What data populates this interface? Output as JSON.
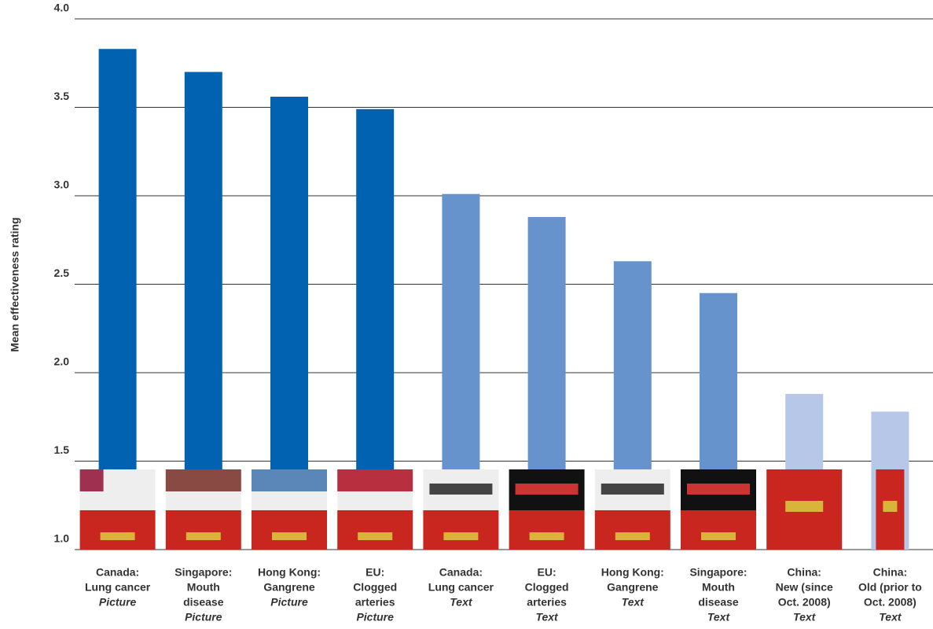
{
  "chart_data": {
    "type": "bar",
    "y_label": "Mean effectiveness rating",
    "categories": [
      [
        "Canada:",
        "Lung cancer"
      ],
      [
        "Singapore:",
        "Mouth",
        "disease"
      ],
      [
        "Hong Kong:",
        "Gangrene"
      ],
      [
        "EU:",
        "Clogged",
        "arteries"
      ],
      [
        "Canada:",
        "Lung cancer"
      ],
      [
        "EU:",
        "Clogged",
        "arteries"
      ],
      [
        "Hong Kong:",
        "Gangrene"
      ],
      [
        "Singapore:",
        "Mouth",
        "disease"
      ],
      [
        "China:",
        "New (since",
        "Oct. 2008)"
      ],
      [
        "China:",
        "Old (prior to",
        "Oct. 2008)"
      ]
    ],
    "warning_format": [
      "Picture",
      "Picture",
      "Picture",
      "Picture",
      "Text",
      "Text",
      "Text",
      "Text",
      "Text",
      "Text"
    ],
    "values": [
      3.83,
      3.7,
      3.56,
      3.49,
      3.01,
      2.88,
      2.63,
      2.45,
      1.88,
      1.78
    ],
    "colors": [
      "#0062b1",
      "#0062b1",
      "#0062b1",
      "#0062b1",
      "#6693cc",
      "#6693cc",
      "#6693cc",
      "#6693cc",
      "#b6c7e7",
      "#b6c7e7"
    ],
    "ylim": [
      1,
      4
    ],
    "yticks": [
      {
        "value": 1,
        "label": "1.0"
      },
      1.5,
      {
        "value": 2,
        "label": "2.0"
      },
      2.5,
      {
        "value": 3,
        "label": "3.0"
      },
      3.5,
      {
        "value": 4,
        "label": "4.0"
      }
    ],
    "grid": true
  }
}
